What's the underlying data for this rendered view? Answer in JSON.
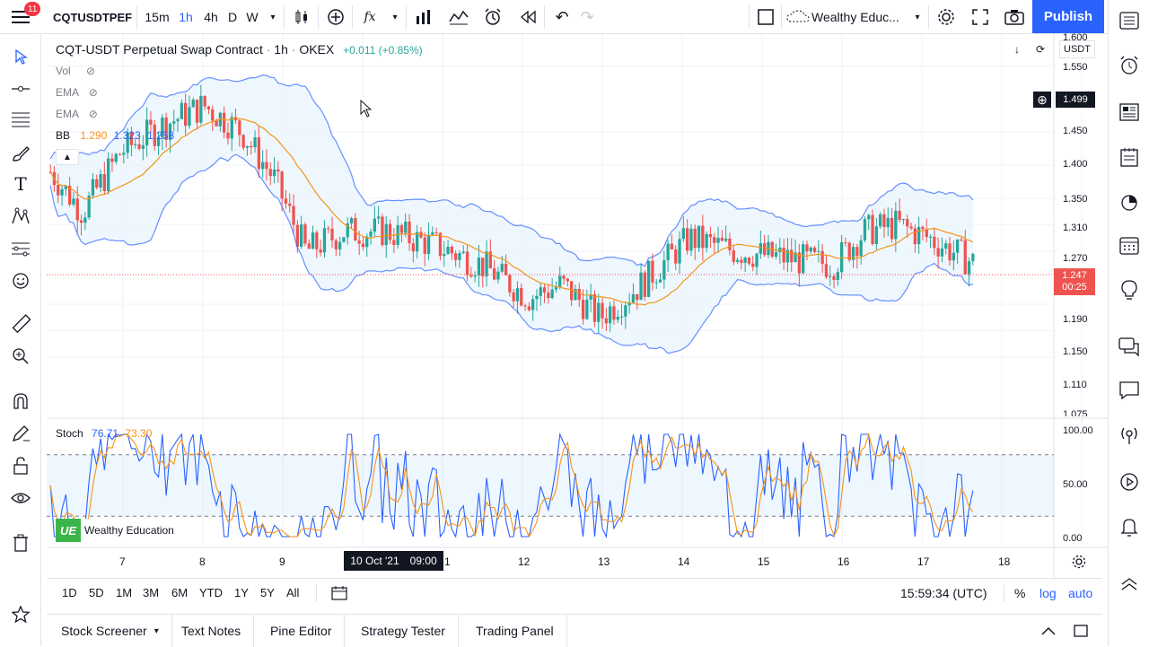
{
  "toolbar": {
    "symbol": "CQTUSDTPEF",
    "intervals": [
      "15m",
      "1h",
      "4h",
      "D",
      "W"
    ],
    "active_interval": "1h",
    "layout_name": "Wealthy Educ...",
    "publish_label": "Publish",
    "notification_count": "11"
  },
  "chart": {
    "title": "CQT-USDT Perpetual Swap Contract",
    "interval": "1h",
    "exchange": "OKEX",
    "change": "+0.011 (+0.85%)",
    "currency": "USDT",
    "crosshair_price": "1.499",
    "last_price": "1.247",
    "countdown": "00:25",
    "up_color": "#26a69a",
    "down_color": "#ef5350"
  },
  "indicators": {
    "vol_label": "Vol",
    "ema1_label": "EMA",
    "ema2_label": "EMA",
    "bb_label": "BB",
    "bb_values": [
      "1.290",
      "1.323",
      "1.258"
    ],
    "stoch_label": "Stoch",
    "stoch_k": "76.71",
    "stoch_d": "73.30"
  },
  "price_axis": [
    "1.600",
    "1.550",
    "1.499",
    "1.450",
    "1.400",
    "1.350",
    "1.310",
    "1.270",
    "1.247",
    "1.190",
    "1.150",
    "1.110",
    "1.075"
  ],
  "stoch_axis": [
    "100.00",
    "50.00",
    "0.00"
  ],
  "time_axis": [
    "7",
    "8",
    "9",
    "10 Oct '21",
    "09:00",
    "1",
    "12",
    "13",
    "14",
    "15",
    "16",
    "17",
    "18"
  ],
  "watermark": "Wealthy Education",
  "range_buttons": [
    "1D",
    "5D",
    "1M",
    "3M",
    "6M",
    "YTD",
    "1Y",
    "5Y",
    "All"
  ],
  "clock": "15:59:34 (UTC)",
  "scale_options": [
    "%",
    "log",
    "auto"
  ],
  "bottom_tabs": [
    "Stock Screener",
    "Text Notes",
    "Pine Editor",
    "Strategy Tester",
    "Trading Panel"
  ]
}
